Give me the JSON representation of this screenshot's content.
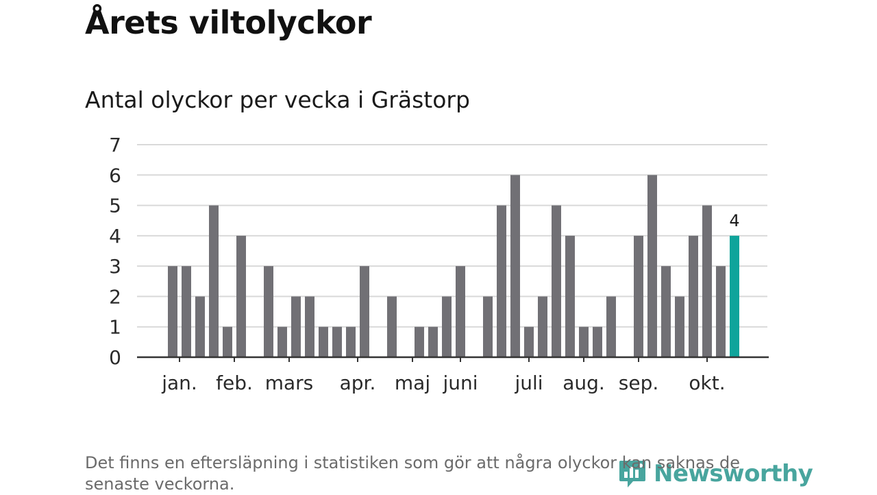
{
  "title": "Årets viltolyckor",
  "subtitle": "Antal olyckor per vecka i Grästorp",
  "footnote": "Det finns en eftersläpning i statistiken som gör att några olyckor kan saknas de senaste veckorna.",
  "logo": {
    "text": "Newsworthy",
    "icon": "newsworthy-logo-icon"
  },
  "colors": {
    "bar": "#717075",
    "highlight": "#0fa49b",
    "grid": "#d9d9d9",
    "axis": "#333333",
    "logo": "#1b8f86"
  },
  "chart_data": {
    "type": "bar",
    "weeks": [
      1,
      2,
      3,
      4,
      5,
      6,
      7,
      8,
      9,
      10,
      11,
      12,
      13,
      14,
      15,
      16,
      17,
      18,
      19,
      20,
      21,
      22,
      23,
      24,
      25,
      26,
      27,
      28,
      29,
      30,
      31,
      32,
      33,
      34,
      35,
      36,
      37,
      38,
      39,
      40,
      41,
      42
    ],
    "values": [
      3,
      3,
      2,
      5,
      1,
      4,
      0,
      3,
      1,
      2,
      2,
      1,
      1,
      1,
      3,
      0,
      2,
      0,
      1,
      1,
      2,
      3,
      0,
      2,
      5,
      6,
      1,
      2,
      5,
      4,
      1,
      1,
      2,
      0,
      4,
      6,
      3,
      2,
      4,
      5,
      3,
      4
    ],
    "highlight_index": 41,
    "highlight_label": "4",
    "ylim": [
      0,
      7
    ],
    "yticks": [
      "0",
      "1",
      "2",
      "3",
      "4",
      "5",
      "6",
      "7"
    ],
    "month_labels": [
      {
        "label": "jan.",
        "week": 1.5
      },
      {
        "label": "feb.",
        "week": 5.5
      },
      {
        "label": "mars",
        "week": 9.5
      },
      {
        "label": "apr.",
        "week": 14.5
      },
      {
        "label": "maj",
        "week": 18.5
      },
      {
        "label": "juni",
        "week": 22
      },
      {
        "label": "juli",
        "week": 27
      },
      {
        "label": "aug.",
        "week": 31
      },
      {
        "label": "sep.",
        "week": 35
      },
      {
        "label": "okt.",
        "week": 40
      }
    ],
    "grid": true
  }
}
